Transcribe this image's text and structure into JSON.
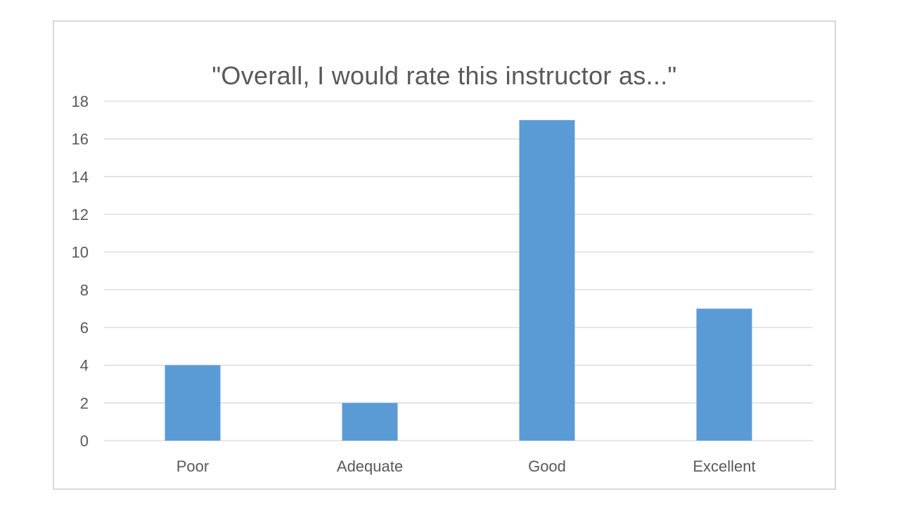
{
  "chart_data": {
    "type": "bar",
    "title": "\"Overall, I would rate this instructor as...\"",
    "categories": [
      "Poor",
      "Adequate",
      "Good",
      "Excellent"
    ],
    "values": [
      4,
      2,
      17,
      7
    ],
    "xlabel": "",
    "ylabel": "",
    "ylim": [
      0,
      18
    ],
    "yticks": [
      0,
      2,
      4,
      6,
      8,
      10,
      12,
      14,
      16,
      18
    ],
    "grid": true,
    "legend": "none",
    "colors": {
      "bar": "#5b9bd5",
      "grid": "#d9d9d9",
      "text": "#595959",
      "frame": "#d9d9d9"
    }
  }
}
